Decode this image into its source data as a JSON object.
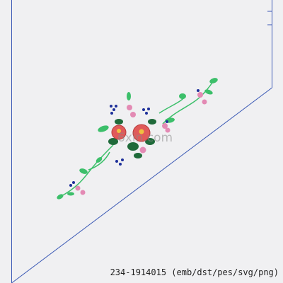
{
  "caption": "234-1914015 (emb/dst/pes/svg/png)",
  "watermark": "6xin.com"
}
